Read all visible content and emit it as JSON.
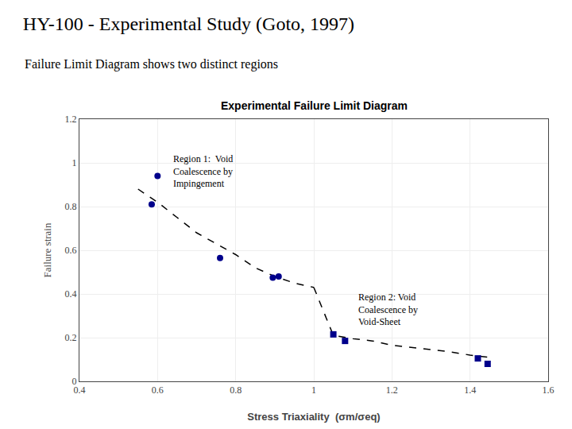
{
  "chart_data": {
    "type": "scatter",
    "title": "HY-100 - Experimental Study (Goto, 1997)",
    "subtitle": "Failure Limit Diagram shows two distinct regions",
    "chart_title": "Experimental Failure Limit Diagram",
    "xlabel": "Stress Triaxiality  (σm/σeq)",
    "ylabel": "Failure strain",
    "xlim": [
      0.4,
      1.6
    ],
    "ylim": [
      0.0,
      1.2
    ],
    "xticks": [
      0.4,
      0.6,
      0.8,
      1,
      1.2,
      1.4,
      1.6
    ],
    "yticks": [
      0,
      0.2,
      0.4,
      0.6,
      0.8,
      1,
      1.2
    ],
    "grid": true,
    "series": [
      {
        "type": "line",
        "line_style": "dashed",
        "color": "#000000",
        "x": [
          0.55,
          0.6,
          0.65,
          0.7,
          0.75,
          0.8,
          0.85,
          0.9,
          0.95,
          1.0
        ],
        "values": [
          0.88,
          0.82,
          0.75,
          0.68,
          0.63,
          0.58,
          0.52,
          0.48,
          0.45,
          0.43
        ]
      },
      {
        "type": "line",
        "line_style": "dashed",
        "color": "#000000",
        "x": [
          1.0,
          1.05,
          1.1,
          1.15,
          1.2,
          1.25,
          1.3,
          1.35,
          1.4,
          1.45
        ],
        "values": [
          0.43,
          0.21,
          0.195,
          0.185,
          0.165,
          0.155,
          0.145,
          0.135,
          0.12,
          0.11
        ]
      },
      {
        "type": "scatter",
        "marker": "circle",
        "color": "#00008B",
        "x": [
          0.585,
          0.6,
          0.76,
          0.895,
          0.91
        ],
        "values": [
          0.81,
          0.94,
          0.565,
          0.475,
          0.48
        ]
      },
      {
        "type": "scatter",
        "marker": "square",
        "color": "#00008B",
        "x": [
          1.05,
          1.08,
          1.42,
          1.445
        ],
        "values": [
          0.215,
          0.185,
          0.105,
          0.08
        ]
      }
    ],
    "annotations": [
      {
        "text": "Region 1:  Void\nCoalescence by\nImpingement",
        "x": 0.635,
        "y": 1.05
      },
      {
        "text": "Region 2: Void\nCoalescence by\nVoid-Sheet",
        "x": 1.11,
        "y": 0.42
      }
    ]
  }
}
